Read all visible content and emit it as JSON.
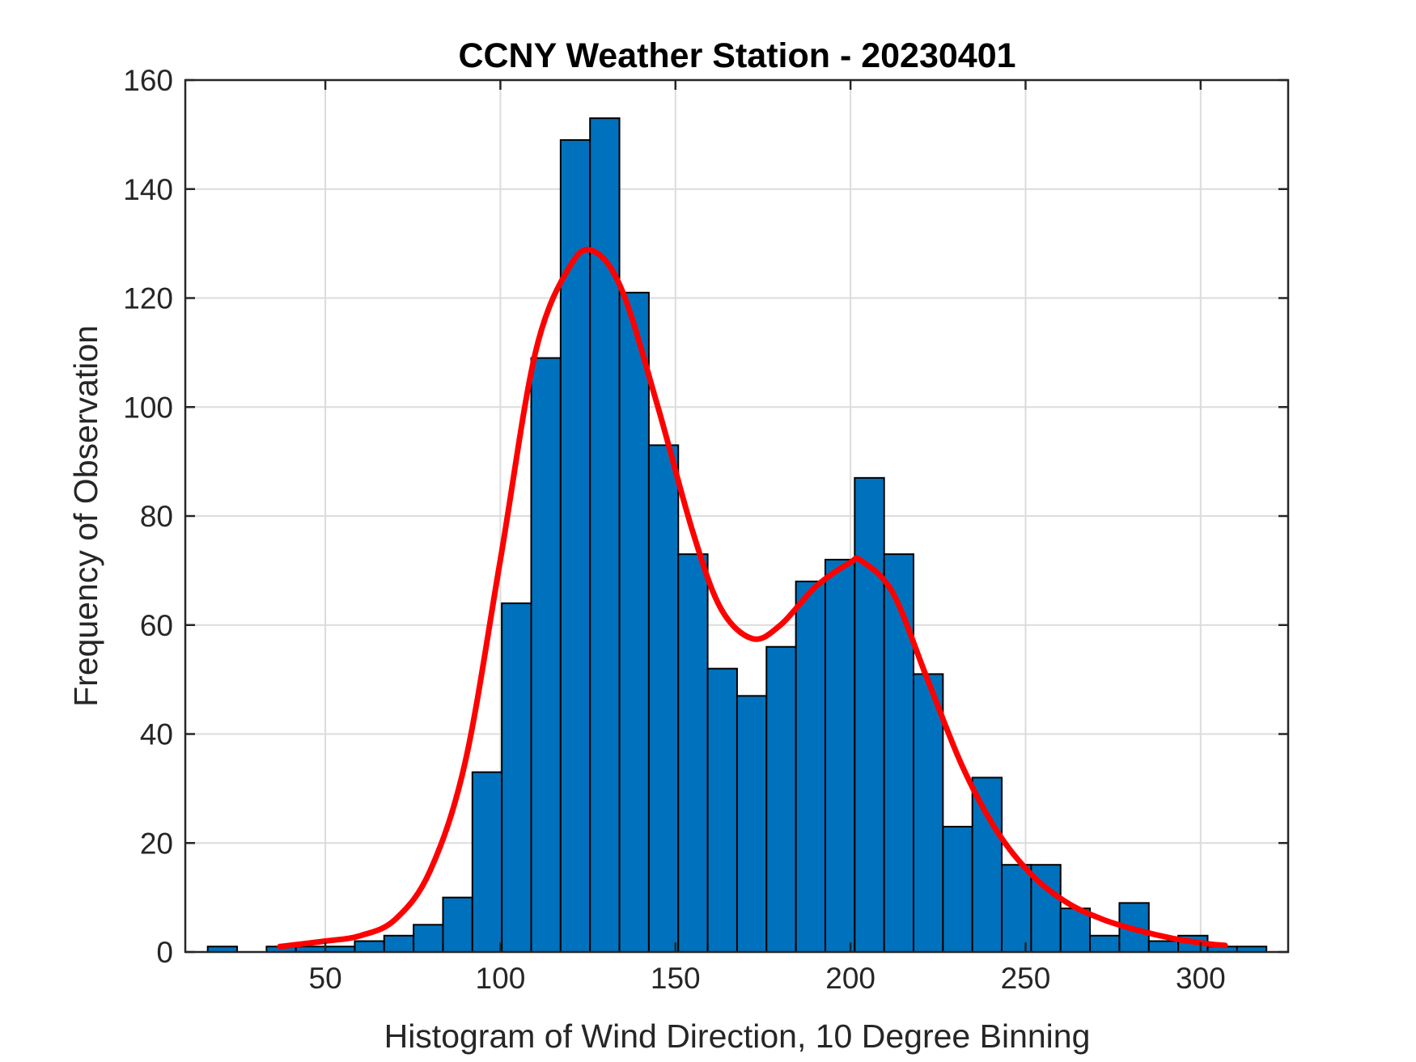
{
  "chart_data": {
    "type": "bar",
    "title": "CCNY Weather Station - 20230401",
    "xlabel": "Histogram of Wind Direction, 10 Degree Binning",
    "ylabel": "Frequency of Observation",
    "xlim": [
      10,
      325
    ],
    "ylim": [
      0,
      160
    ],
    "grid": true,
    "x_ticks": [
      50,
      100,
      150,
      200,
      250,
      300
    ],
    "y_ticks": [
      0,
      20,
      40,
      60,
      80,
      100,
      120,
      140,
      160
    ],
    "bin_width": 8.4,
    "bin_start": 16.4,
    "bins": [
      {
        "start": 16.4,
        "value": 1
      },
      {
        "start": 24.8,
        "value": 0
      },
      {
        "start": 33.2,
        "value": 1
      },
      {
        "start": 41.6,
        "value": 1
      },
      {
        "start": 50.0,
        "value": 1
      },
      {
        "start": 58.4,
        "value": 2
      },
      {
        "start": 66.8,
        "value": 3
      },
      {
        "start": 75.2,
        "value": 5
      },
      {
        "start": 83.6,
        "value": 10
      },
      {
        "start": 92.0,
        "value": 33
      },
      {
        "start": 100.4,
        "value": 64
      },
      {
        "start": 108.8,
        "value": 109
      },
      {
        "start": 117.2,
        "value": 149
      },
      {
        "start": 125.6,
        "value": 153
      },
      {
        "start": 134.0,
        "value": 121
      },
      {
        "start": 142.4,
        "value": 93
      },
      {
        "start": 150.8,
        "value": 73
      },
      {
        "start": 159.2,
        "value": 52
      },
      {
        "start": 167.6,
        "value": 47
      },
      {
        "start": 176.0,
        "value": 56
      },
      {
        "start": 184.4,
        "value": 68
      },
      {
        "start": 192.8,
        "value": 72
      },
      {
        "start": 201.2,
        "value": 87
      },
      {
        "start": 209.6,
        "value": 73
      },
      {
        "start": 218.0,
        "value": 51
      },
      {
        "start": 226.4,
        "value": 23
      },
      {
        "start": 234.8,
        "value": 32
      },
      {
        "start": 243.2,
        "value": 16
      },
      {
        "start": 251.6,
        "value": 16
      },
      {
        "start": 260.0,
        "value": 8
      },
      {
        "start": 268.4,
        "value": 3
      },
      {
        "start": 276.8,
        "value": 9
      },
      {
        "start": 285.2,
        "value": 2
      },
      {
        "start": 293.6,
        "value": 3
      },
      {
        "start": 302.0,
        "value": 1
      },
      {
        "start": 310.4,
        "value": 1
      }
    ],
    "fit_curve": {
      "name": "density fit",
      "color": "#ff0000",
      "x": [
        37,
        50,
        60,
        70,
        80,
        90,
        100,
        110,
        120,
        127,
        135,
        145,
        155,
        163,
        172,
        180,
        190,
        200,
        203,
        212,
        222,
        232,
        242,
        252,
        262,
        272,
        282,
        292,
        302,
        307
      ],
      "y": [
        1,
        2,
        3,
        6,
        15,
        35,
        72,
        110,
        126,
        128.5,
        121,
        100,
        77,
        63,
        57.5,
        60,
        67,
        71.5,
        71.8,
        66,
        50,
        34,
        22,
        14,
        9,
        6,
        4,
        2.5,
        1.5,
        1.2
      ]
    },
    "colors": {
      "bar_fill": "#0072bd",
      "bar_edge": "#000000",
      "grid": "#dcdcdc",
      "axis": "#262626"
    }
  }
}
